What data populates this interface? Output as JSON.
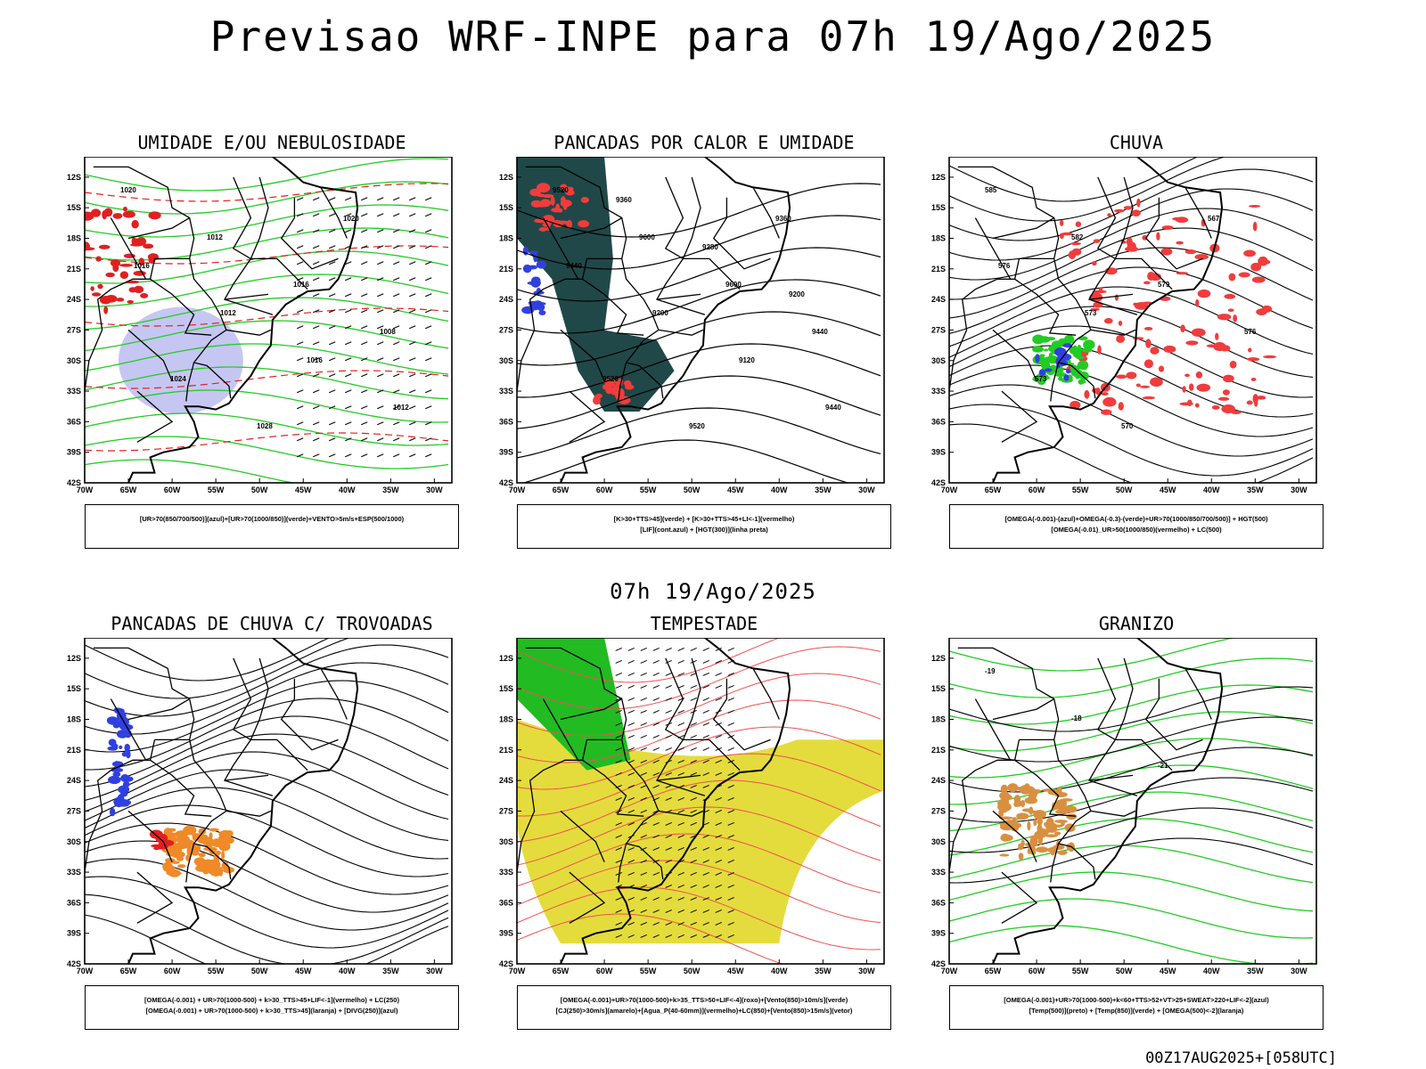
{
  "header": {
    "title": "Previsao WRF-INPE  para 07h 19/Ago/2025"
  },
  "middle_time": "07h 19/Ago/2025",
  "footer": "00Z17AUG2025+[058UTC]",
  "axes": {
    "lat_ticks": [
      "12S",
      "15S",
      "18S",
      "21S",
      "24S",
      "27S",
      "30S",
      "33S",
      "36S",
      "39S",
      "42S"
    ],
    "lon_ticks": [
      "70W",
      "65W",
      "60W",
      "55W",
      "50W",
      "45W",
      "40W",
      "35W",
      "30W"
    ]
  },
  "panels": [
    {
      "id": "umidade",
      "title": "UMIDADE E/OU NEBULOSIDADE",
      "legend": [
        "[UR>70(850/700/500)](azul)+[UR>70(1000/850)](verde)+VENTO>5m/s+ESP(500/1000)"
      ],
      "labels": [
        "1020",
        "1012",
        "1016",
        "1008",
        "1024",
        "1028",
        "1020",
        "1016",
        "1012",
        "1016",
        "1012"
      ]
    },
    {
      "id": "pancadas",
      "title": "PANCADAS POR CALOR E UMIDADE",
      "legend": [
        "[K>30+TTS>45](verde) + [K>30+TTS>45+LI<-1](vermelho)",
        "[LIF](cont.azul) + [HGT(300)](linha preta)"
      ],
      "labels": [
        "9520",
        "9600",
        "9600",
        "9440",
        "9520",
        "9520",
        "9360",
        "9440",
        "9200",
        "9120",
        "9440",
        "9360",
        "9280",
        "9200"
      ]
    },
    {
      "id": "chuva",
      "title": "CHUVA",
      "legend": [
        "[OMEGA(-0.001)-(azul)+OMEGA(-0.3)-(verde)+UR>70(1000/850/700/500)] + HGT(500)",
        "[OMEGA(-0.01)_UR>50(1000/850)(vermelho) + LC(500)"
      ],
      "labels": [
        "585",
        "582",
        "579",
        "576",
        "573",
        "570",
        "567",
        "576",
        "573"
      ]
    },
    {
      "id": "trovoadas",
      "title": "PANCADAS DE CHUVA C/ TROVOADAS",
      "legend": [
        "[OMEGA(-0.001) + UR>70(1000-500) + k>30_TTS>45+LIF<-1](vermelho) + LC(250)",
        "[OMEGA(-0.001) + UR>70(1000-500) + k>30_TTS>45](laranja) + [DIVG(250)](azul)"
      ],
      "labels": []
    },
    {
      "id": "tempestade",
      "title": "TEMPESTADE",
      "legend": [
        "[OMEGA(-0.001)+UR>70(1000-500)+k>35_TTS>50+LIF<-4](roxo)+[Vento(850)>10m/s](verde)",
        "[CJ(250)>30m/s](amarelo)+[Agua_P(40-60mm)](vermelho)+LC(850)+[Vento(850)>15m/s](vetor)"
      ],
      "labels": []
    },
    {
      "id": "granizo",
      "title": "GRANIZO",
      "legend": [
        "[OMEGA(-0.001)+UR>70(1000-500)+k<60+TTS>52+VT>25+SWEAT>220+LIF<-2](azul)",
        "[Temp(500)](preto) + [Temp(850)](verde) + [OMEGA(500)<-2](laranja)"
      ],
      "labels": [
        "-19",
        "-18",
        "-21"
      ]
    }
  ]
}
